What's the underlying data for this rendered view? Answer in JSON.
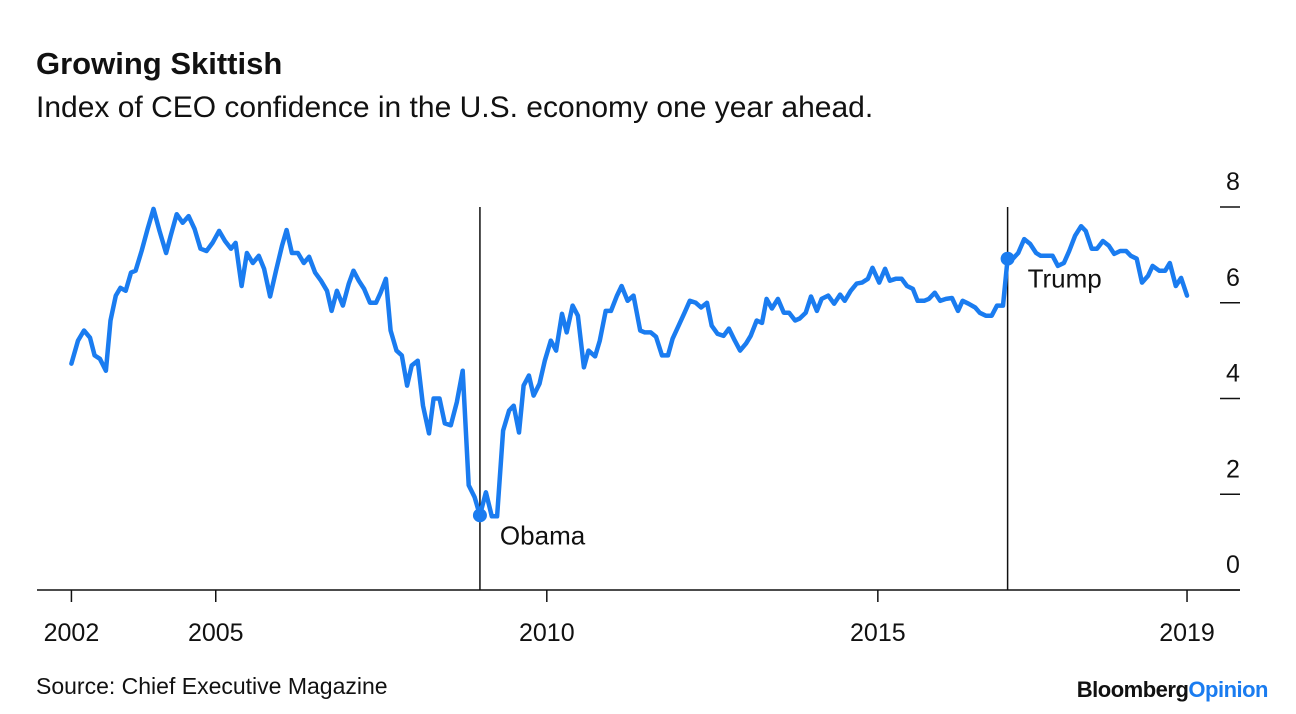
{
  "chart_data": {
    "type": "line",
    "title": "Growing Skittish",
    "subtitle": "Index of CEO confidence in the U.S. economy one year ahead.",
    "source": "Source: Chief Executive Magazine",
    "logo": {
      "left": "Bloomberg",
      "right": "Opinion"
    },
    "x": [
      2002.82,
      2002.92,
      2003.01,
      2003.1,
      2003.17,
      2003.25,
      2003.34,
      2003.41,
      2003.49,
      2003.56,
      2003.64,
      2003.72,
      2003.79,
      2003.88,
      2003.97,
      2004.06,
      2004.15,
      2004.25,
      2004.32,
      2004.41,
      2004.5,
      2004.59,
      2004.68,
      2004.77,
      2004.86,
      2004.95,
      2005.05,
      2005.14,
      2005.23,
      2005.3,
      2005.39,
      2005.47,
      2005.56,
      2005.65,
      2005.73,
      2005.82,
      2005.91,
      2006.0,
      2006.07,
      2006.15,
      2006.24,
      2006.33,
      2006.41,
      2006.5,
      2006.59,
      2006.68,
      2006.75,
      2006.83,
      2006.92,
      2007.01,
      2007.08,
      2007.16,
      2007.24,
      2007.33,
      2007.42,
      2007.49,
      2007.57,
      2007.64,
      2007.73,
      2007.81,
      2007.89,
      2007.96,
      2008.05,
      2008.13,
      2008.22,
      2008.29,
      2008.38,
      2008.46,
      2008.55,
      2008.64,
      2008.73,
      2008.82,
      2008.91,
      2008.99,
      2009.08,
      2009.17,
      2009.25,
      2009.34,
      2009.43,
      2009.5,
      2009.58,
      2009.65,
      2009.73,
      2009.8,
      2009.89,
      2009.97,
      2010.06,
      2010.14,
      2010.23,
      2010.3,
      2010.39,
      2010.47,
      2010.56,
      2010.63,
      2010.73,
      2010.8,
      2010.89,
      2010.97,
      2011.06,
      2011.13,
      2011.22,
      2011.31,
      2011.41,
      2011.48,
      2011.57,
      2011.65,
      2011.74,
      2011.83,
      2011.9,
      2011.99,
      2012.08,
      2012.16,
      2012.25,
      2012.33,
      2012.42,
      2012.49,
      2012.58,
      2012.67,
      2012.75,
      2012.84,
      2012.92,
      2013.01,
      2013.08,
      2013.17,
      2013.25,
      2013.32,
      2013.4,
      2013.49,
      2013.58,
      2013.66,
      2013.75,
      2013.82,
      2013.91,
      2013.99,
      2014.08,
      2014.15,
      2014.25,
      2014.34,
      2014.43,
      2014.5,
      2014.59,
      2014.68,
      2014.76,
      2014.85,
      2014.92,
      2015.02,
      2015.11,
      2015.18,
      2015.27,
      2015.36,
      2015.44,
      2015.53,
      2015.6,
      2015.7,
      2015.77,
      2015.86,
      2015.94,
      2016.03,
      2016.12,
      2016.21,
      2016.28,
      2016.37,
      2016.47,
      2016.54,
      2016.63,
      2016.72,
      2016.8,
      2016.89,
      2016.96,
      2017.04,
      2017.12,
      2017.21,
      2017.3,
      2017.39,
      2017.46,
      2017.55,
      2017.64,
      2017.72,
      2017.81,
      2017.89,
      2017.98,
      2018.07,
      2018.14,
      2018.23,
      2018.31,
      2018.4,
      2018.49,
      2018.57,
      2018.66,
      2018.75,
      2018.82,
      2018.91,
      2018.99,
      2019.08,
      2019.15,
      2019.25,
      2019.34,
      2019.41,
      2019.5,
      2019.58,
      2019.67
    ],
    "series": [
      {
        "color": "#1a7cf0",
        "values": [
          4.73,
          5.21,
          5.42,
          5.27,
          4.9,
          4.83,
          4.58,
          5.63,
          6.15,
          6.31,
          6.25,
          6.63,
          6.67,
          7.08,
          7.54,
          7.96,
          7.5,
          7.04,
          7.4,
          7.85,
          7.67,
          7.81,
          7.54,
          7.13,
          7.08,
          7.25,
          7.5,
          7.29,
          7.13,
          7.25,
          6.35,
          7.04,
          6.83,
          6.98,
          6.71,
          6.13,
          6.67,
          7.19,
          7.52,
          7.04,
          7.04,
          6.83,
          6.96,
          6.63,
          6.46,
          6.25,
          5.83,
          6.25,
          5.94,
          6.4,
          6.67,
          6.46,
          6.29,
          6.0,
          6.0,
          6.21,
          6.5,
          5.42,
          5.0,
          4.9,
          4.27,
          4.69,
          4.79,
          3.85,
          3.27,
          4.0,
          4.0,
          3.48,
          3.44,
          3.92,
          4.58,
          2.19,
          1.94,
          1.56,
          2.04,
          1.54,
          1.54,
          3.33,
          3.75,
          3.85,
          3.29,
          4.27,
          4.48,
          4.06,
          4.31,
          4.79,
          5.21,
          5.0,
          5.77,
          5.38,
          5.94,
          5.73,
          4.65,
          5.0,
          4.88,
          5.21,
          5.83,
          5.83,
          6.15,
          6.35,
          6.04,
          6.15,
          5.42,
          5.38,
          5.38,
          5.29,
          4.9,
          4.9,
          5.25,
          5.52,
          5.79,
          6.04,
          6.0,
          5.9,
          6.0,
          5.52,
          5.35,
          5.31,
          5.46,
          5.21,
          5.0,
          5.15,
          5.31,
          5.63,
          5.58,
          6.08,
          5.88,
          6.08,
          5.79,
          5.79,
          5.63,
          5.67,
          5.79,
          6.13,
          5.83,
          6.08,
          6.15,
          5.98,
          6.17,
          6.04,
          6.25,
          6.4,
          6.42,
          6.5,
          6.73,
          6.42,
          6.71,
          6.46,
          6.5,
          6.5,
          6.35,
          6.29,
          6.04,
          6.04,
          6.08,
          6.21,
          6.04,
          6.08,
          6.1,
          5.83,
          6.04,
          5.98,
          5.9,
          5.79,
          5.73,
          5.73,
          5.94,
          5.94,
          6.92,
          6.92,
          7.04,
          7.33,
          7.23,
          7.04,
          6.98,
          6.98,
          6.98,
          6.77,
          6.83,
          7.08,
          7.4,
          7.6,
          7.5,
          7.13,
          7.13,
          7.29,
          7.19,
          7.02,
          7.08,
          7.08,
          6.98,
          6.92,
          6.42,
          6.56,
          6.77,
          6.67,
          6.67,
          6.83,
          6.35,
          6.52,
          6.15
        ]
      }
    ],
    "annotations": [
      {
        "label": "Obama",
        "x": 2008.99,
        "value": 1.56
      },
      {
        "label": "Trump",
        "x": 2016.96,
        "value": 6.92
      }
    ],
    "xlim": [
      2002.3,
      2020.47
    ],
    "xticks": [
      {
        "value": 2002.82,
        "label": "2002"
      },
      2005,
      2010,
      2015,
      {
        "value": 2019.67,
        "label": "2019"
      }
    ],
    "ylim": [
      0,
      8
    ],
    "yticks": [
      0,
      2,
      4,
      6,
      8
    ]
  }
}
